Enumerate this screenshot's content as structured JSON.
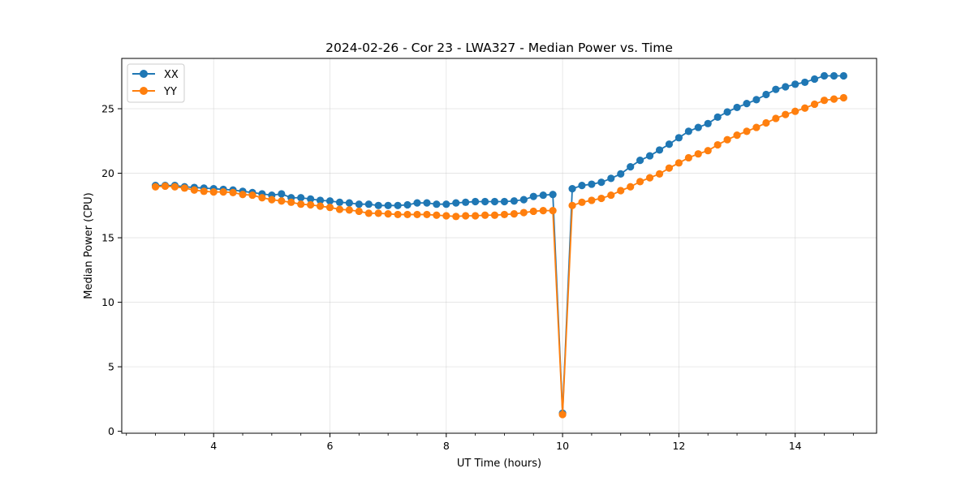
{
  "chart_data": {
    "type": "line",
    "title": "2024-02-26 - Cor 23 - LWA327 - Median Power vs. Time",
    "xlabel": "UT Time (hours)",
    "ylabel": "Median Power (CPU)",
    "xlim": [
      2.42,
      15.4
    ],
    "ylim": [
      -0.15,
      28.9
    ],
    "xticks": [
      4,
      6,
      8,
      10,
      12,
      14
    ],
    "yticks": [
      0,
      5,
      10,
      15,
      20,
      25
    ],
    "xminor_step": 0.5,
    "grid": true,
    "legend_position": "upper-left",
    "x": [
      3.0,
      3.167,
      3.333,
      3.5,
      3.667,
      3.833,
      4.0,
      4.167,
      4.333,
      4.5,
      4.667,
      4.833,
      5.0,
      5.167,
      5.333,
      5.5,
      5.667,
      5.833,
      6.0,
      6.167,
      6.333,
      6.5,
      6.667,
      6.833,
      7.0,
      7.167,
      7.333,
      7.5,
      7.667,
      7.833,
      8.0,
      8.167,
      8.333,
      8.5,
      8.667,
      8.833,
      9.0,
      9.167,
      9.333,
      9.5,
      9.667,
      9.833,
      10.0,
      10.167,
      10.333,
      10.5,
      10.667,
      10.833,
      11.0,
      11.167,
      11.333,
      11.5,
      11.667,
      11.833,
      12.0,
      12.167,
      12.333,
      12.5,
      12.667,
      12.833,
      13.0,
      13.167,
      13.333,
      13.5,
      13.667,
      13.833,
      14.0,
      14.167,
      14.333,
      14.5,
      14.667,
      14.833
    ],
    "series": [
      {
        "name": "XX",
        "color": "#1f77b4",
        "values": [
          19.05,
          19.05,
          19.05,
          18.95,
          18.9,
          18.85,
          18.8,
          18.75,
          18.7,
          18.6,
          18.5,
          18.4,
          18.3,
          18.4,
          18.1,
          18.1,
          18.0,
          17.9,
          17.85,
          17.75,
          17.7,
          17.6,
          17.6,
          17.5,
          17.5,
          17.5,
          17.55,
          17.7,
          17.7,
          17.6,
          17.6,
          17.7,
          17.75,
          17.8,
          17.8,
          17.8,
          17.8,
          17.85,
          17.95,
          18.2,
          18.3,
          18.35,
          1.4,
          18.8,
          19.05,
          19.15,
          19.3,
          19.6,
          19.95,
          20.5,
          21.0,
          21.35,
          21.8,
          22.25,
          22.75,
          23.25,
          23.55,
          23.85,
          24.35,
          24.75,
          25.1,
          25.4,
          25.7,
          26.1,
          26.5,
          26.7,
          26.9,
          27.05,
          27.3,
          27.55,
          27.55,
          27.55
        ]
      },
      {
        "name": "YY",
        "color": "#ff7f0e",
        "values": [
          18.95,
          19.0,
          18.95,
          18.85,
          18.7,
          18.6,
          18.55,
          18.55,
          18.5,
          18.35,
          18.3,
          18.1,
          17.95,
          17.85,
          17.75,
          17.6,
          17.55,
          17.45,
          17.35,
          17.2,
          17.15,
          17.05,
          16.9,
          16.9,
          16.85,
          16.8,
          16.8,
          16.8,
          16.8,
          16.75,
          16.7,
          16.65,
          16.7,
          16.7,
          16.75,
          16.75,
          16.8,
          16.85,
          16.95,
          17.05,
          17.1,
          17.1,
          1.3,
          17.5,
          17.75,
          17.9,
          18.05,
          18.3,
          18.65,
          18.95,
          19.35,
          19.65,
          19.95,
          20.4,
          20.8,
          21.2,
          21.5,
          21.75,
          22.2,
          22.6,
          22.95,
          23.25,
          23.55,
          23.9,
          24.25,
          24.55,
          24.8,
          25.05,
          25.35,
          25.65,
          25.75,
          25.85
        ]
      }
    ]
  }
}
